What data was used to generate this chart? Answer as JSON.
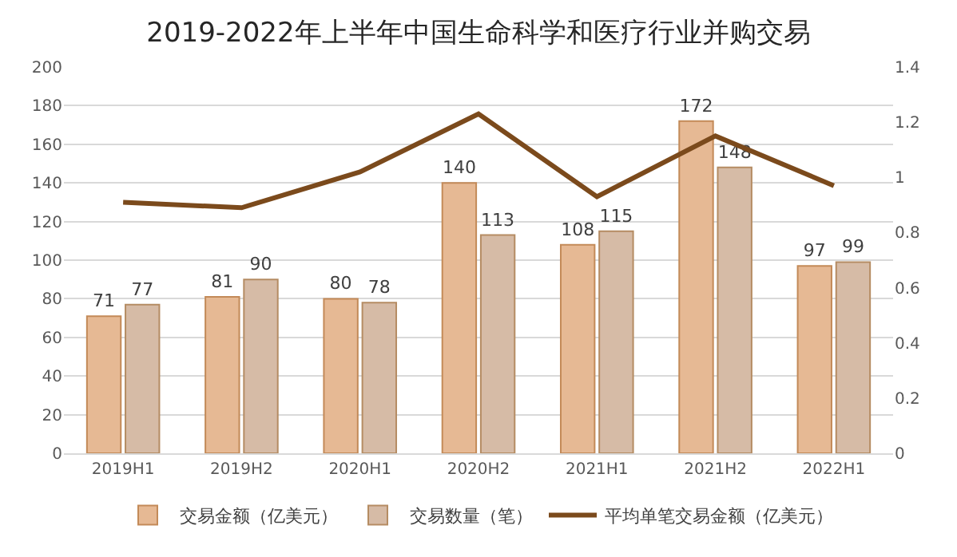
{
  "chart_data": {
    "type": "bar",
    "title": "2019-2022年上半年中国生命科学和医疗行业并购交易",
    "categories": [
      "2019H1",
      "2019H2",
      "2020H1",
      "2020H2",
      "2021H1",
      "2021H2",
      "2022H1"
    ],
    "series": [
      {
        "name": "交易金额（亿美元）",
        "color": "#e6b994",
        "values": [
          71,
          81,
          80,
          140,
          108,
          172,
          97
        ],
        "value_labels": [
          "71",
          "81",
          "80",
          "140",
          "108",
          "172",
          "97"
        ]
      },
      {
        "name": "交易数量（笔）",
        "color": "#d6bba6",
        "values": [
          77,
          90,
          78,
          113,
          115,
          148,
          99
        ],
        "value_labels": [
          "77",
          "90",
          "78",
          "113",
          "115",
          "148",
          "99"
        ]
      },
      {
        "name": "平均单笔交易金额（亿美元）",
        "type": "line",
        "axis": "y2",
        "color": "#7b4a1c",
        "values": [
          0.91,
          0.89,
          1.02,
          1.23,
          0.93,
          1.15,
          0.97
        ]
      }
    ],
    "ylim": [
      0,
      200
    ],
    "yticks": [
      0,
      20,
      40,
      60,
      80,
      100,
      120,
      140,
      160,
      180,
      200
    ],
    "y2lim": [
      0,
      1.4
    ],
    "y2ticks": [
      0,
      0.2,
      0.4,
      0.6,
      0.8,
      1,
      1.2,
      1.4
    ],
    "grid": "y",
    "legend": "bottom"
  }
}
